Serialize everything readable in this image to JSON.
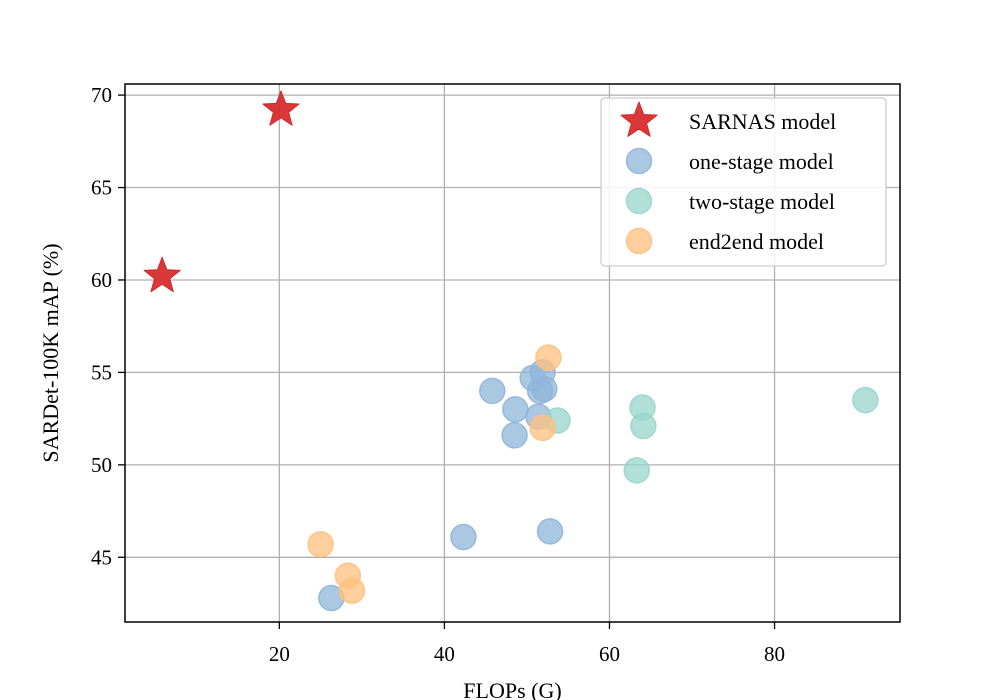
{
  "chart_data": {
    "type": "scatter",
    "title": "",
    "xlabel": "FLOPs (G)",
    "ylabel": "SARDet-100K mAP (%)",
    "xlim": [
      1.3,
      95.2
    ],
    "ylim": [
      41.5,
      70.6
    ],
    "xticks": [
      20,
      40,
      60,
      80
    ],
    "yticks": [
      45,
      50,
      55,
      60,
      65,
      70
    ],
    "grid": true,
    "legend_position": "top-right",
    "series": [
      {
        "name": "SARNAS model",
        "marker": "star",
        "color": "#d62728",
        "points": [
          {
            "x": 5.8,
            "y": 60.2
          },
          {
            "x": 20.2,
            "y": 69.2
          }
        ]
      },
      {
        "name": "one-stage model",
        "marker": "circle",
        "color": "#8fb5d9",
        "points": [
          {
            "x": 26.3,
            "y": 42.8
          },
          {
            "x": 42.3,
            "y": 46.1
          },
          {
            "x": 45.8,
            "y": 54.0
          },
          {
            "x": 48.5,
            "y": 51.6
          },
          {
            "x": 48.6,
            "y": 53.0
          },
          {
            "x": 50.7,
            "y": 54.7
          },
          {
            "x": 51.4,
            "y": 52.6
          },
          {
            "x": 51.6,
            "y": 54.0
          },
          {
            "x": 51.9,
            "y": 55.0
          },
          {
            "x": 52.1,
            "y": 54.1
          },
          {
            "x": 52.8,
            "y": 46.4
          }
        ]
      },
      {
        "name": "two-stage model",
        "marker": "circle",
        "color": "#98d6cc",
        "points": [
          {
            "x": 53.7,
            "y": 52.4
          },
          {
            "x": 63.3,
            "y": 49.7
          },
          {
            "x": 64.0,
            "y": 53.1
          },
          {
            "x": 64.1,
            "y": 52.1
          },
          {
            "x": 91.0,
            "y": 53.5
          }
        ]
      },
      {
        "name": "end2end model",
        "marker": "circle",
        "color": "#ffc07e",
        "points": [
          {
            "x": 25.0,
            "y": 45.7
          },
          {
            "x": 28.3,
            "y": 44.0
          },
          {
            "x": 28.8,
            "y": 43.2
          },
          {
            "x": 51.9,
            "y": 52.0
          },
          {
            "x": 52.6,
            "y": 55.8
          }
        ]
      }
    ]
  }
}
